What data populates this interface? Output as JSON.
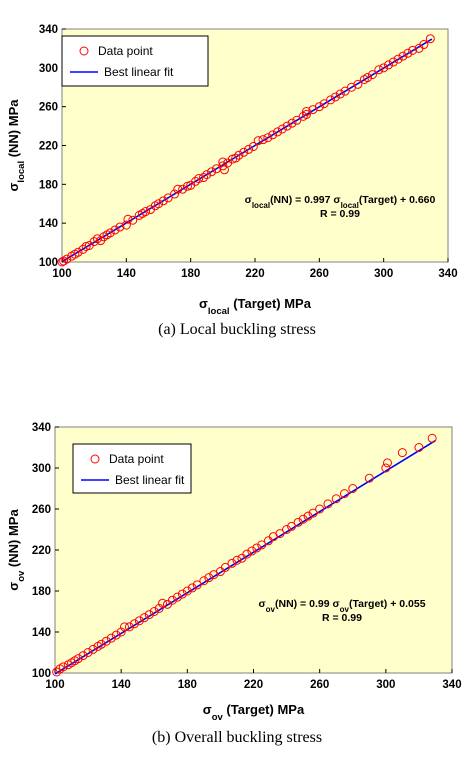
{
  "chart_data": [
    {
      "type": "scatter",
      "panel": "a",
      "caption": "(a) Local buckling stress",
      "xlabel": {
        "main": "σ",
        "sub": "local",
        "rest": " (Target) MPa"
      },
      "ylabel": {
        "main": "σ",
        "sub": "local",
        "rest": " (NN) MPa"
      },
      "xlim": [
        100,
        340
      ],
      "ylim": [
        100,
        340
      ],
      "xticks": [
        "100",
        "140",
        "180",
        "220",
        "260",
        "300",
        "340"
      ],
      "yticks": [
        "100",
        "140",
        "180",
        "220",
        "260",
        "300",
        "340"
      ],
      "grid": false,
      "background": "#ffffcc",
      "legend_placement": "top-left",
      "legend": [
        {
          "label": "Data point",
          "marker": "circle",
          "color": "#ff0000"
        },
        {
          "label": "Best linear fit",
          "marker": "line",
          "color": "#0000ff"
        }
      ],
      "fit": {
        "slope": 0.997,
        "intercept": 0.66,
        "R": 0.99
      },
      "equation": {
        "line1": [
          {
            "t": "σ",
            "sub": "local"
          },
          {
            "t": "(NN) = 0.997 σ",
            "sub": "local"
          },
          {
            "t": "(Target) + 0.660"
          }
        ],
        "line2": "R = 0.99"
      },
      "series": [
        {
          "name": "Data point",
          "x": [
            100,
            101,
            103,
            106,
            108,
            110,
            113,
            115,
            117,
            120,
            122,
            124,
            126,
            128,
            130,
            133,
            136,
            140,
            141,
            144,
            148,
            150,
            152,
            155,
            158,
            160,
            163,
            166,
            170,
            172,
            175,
            178,
            180,
            183,
            185,
            188,
            190,
            193,
            196,
            200,
            200,
            201,
            203,
            206,
            208,
            210,
            213,
            216,
            219,
            222,
            225,
            228,
            231,
            234,
            237,
            240,
            243,
            246,
            250,
            252,
            252,
            256,
            260,
            263,
            267,
            270,
            273,
            276,
            280,
            284,
            288,
            290,
            293,
            297,
            300,
            303,
            306,
            309,
            312,
            315,
            318,
            322,
            325,
            329
          ],
          "y": [
            100,
            101,
            103,
            106,
            108,
            110,
            113,
            116,
            117,
            121,
            124,
            122,
            126,
            128,
            130,
            133,
            136,
            138,
            144,
            143,
            148,
            150,
            152,
            154,
            158,
            160,
            163,
            166,
            170,
            175,
            175,
            178,
            179,
            183,
            186,
            187,
            190,
            193,
            196,
            199,
            203,
            195,
            202,
            206,
            207,
            210,
            213,
            216,
            219,
            225,
            226,
            228,
            231,
            234,
            237,
            240,
            243,
            246,
            250,
            252,
            255,
            257,
            260,
            263,
            267,
            270,
            273,
            276,
            280,
            283,
            288,
            290,
            293,
            298,
            300,
            303,
            306,
            309,
            312,
            315,
            318,
            320,
            324,
            330
          ]
        }
      ]
    },
    {
      "type": "scatter",
      "panel": "b",
      "caption": "(b) Overall buckling stress",
      "xlabel": {
        "main": "σ",
        "sub": "ov",
        "rest": " (Target) MPa"
      },
      "ylabel": {
        "main": "σ",
        "sub": "ov",
        "rest": " (NN) MPa"
      },
      "xlim": [
        100,
        340
      ],
      "ylim": [
        100,
        340
      ],
      "xticks": [
        "100",
        "140",
        "180",
        "220",
        "260",
        "300",
        "340"
      ],
      "yticks": [
        "100",
        "140",
        "180",
        "220",
        "260",
        "300",
        "340"
      ],
      "grid": false,
      "background": "#ffffcc",
      "legend_placement": "top-left",
      "legend": [
        {
          "label": "Data point",
          "marker": "circle",
          "color": "#ff0000"
        },
        {
          "label": "Best linear fit",
          "marker": "line",
          "color": "#0000ff"
        }
      ],
      "fit": {
        "slope": 0.99,
        "intercept": 0.055,
        "R": 0.99
      },
      "equation": {
        "line1": [
          {
            "t": "σ",
            "sub": "ov"
          },
          {
            "t": "(NN) = 0.99 σ",
            "sub": "ov"
          },
          {
            "t": "(Target) + 0.055"
          }
        ],
        "line2": "R = 0.99"
      },
      "series": [
        {
          "name": "Data point",
          "x": [
            101,
            103,
            105,
            108,
            110,
            112,
            114,
            117,
            120,
            123,
            126,
            128,
            131,
            134,
            137,
            140,
            142,
            145,
            148,
            151,
            154,
            157,
            160,
            163,
            165,
            168,
            171,
            174,
            177,
            180,
            183,
            186,
            190,
            193,
            196,
            200,
            203,
            207,
            210,
            213,
            216,
            219,
            222,
            225,
            229,
            232,
            236,
            240,
            243,
            247,
            250,
            253,
            256,
            260,
            265,
            270,
            275,
            280,
            290,
            300,
            301,
            310,
            320,
            328
          ],
          "y": [
            101,
            104,
            106,
            108,
            110,
            112,
            114,
            117,
            120,
            123,
            126,
            128,
            131,
            134,
            137,
            140,
            145,
            145,
            148,
            151,
            154,
            157,
            160,
            163,
            168,
            167,
            171,
            174,
            177,
            180,
            183,
            186,
            190,
            193,
            196,
            199,
            203,
            207,
            210,
            212,
            216,
            219,
            222,
            225,
            229,
            233,
            236,
            240,
            243,
            247,
            250,
            253,
            256,
            260,
            265,
            270,
            275,
            280,
            290,
            300,
            305,
            315,
            320,
            329
          ]
        }
      ]
    }
  ]
}
